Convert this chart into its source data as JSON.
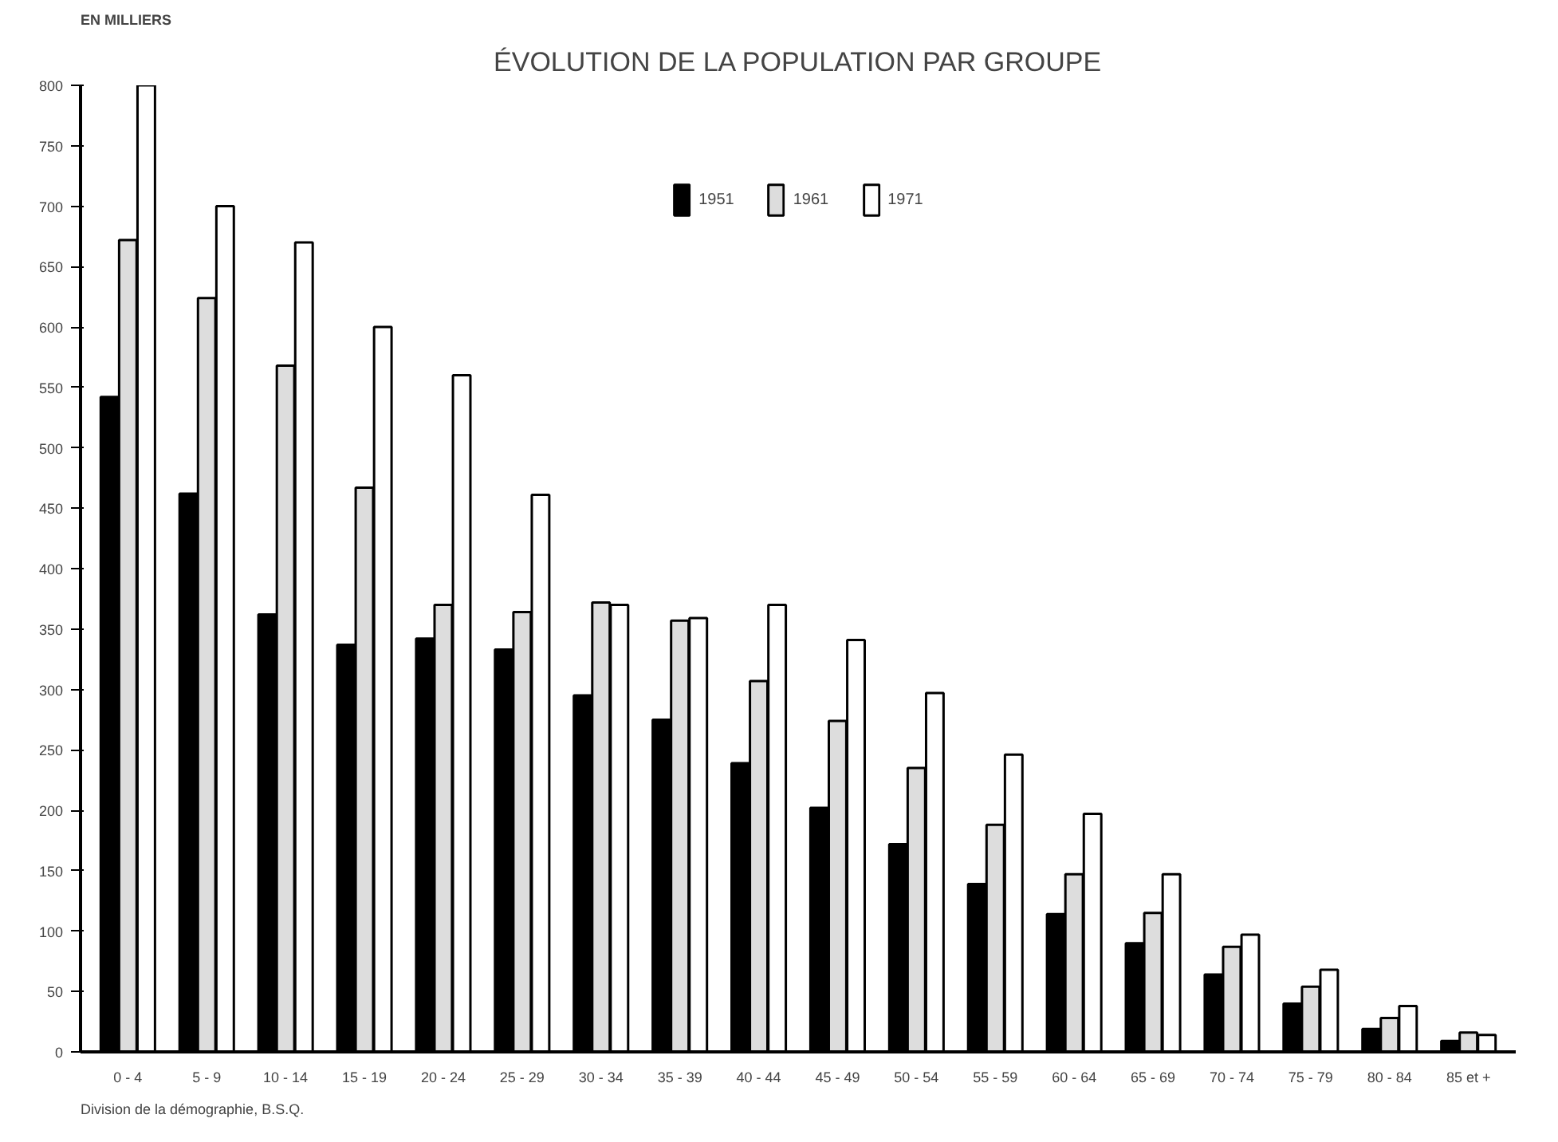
{
  "chart_data": {
    "type": "bar",
    "title": "ÉVOLUTION DE LA POPULATION PAR GROUPE",
    "ylabel": "EN MILLIERS",
    "categories": [
      "0 - 4",
      "5 - 9",
      "10 - 14",
      "15 - 19",
      "20 - 24",
      "25 - 29",
      "30 - 34",
      "35 - 39",
      "40 - 44",
      "45 - 49",
      "50 - 54",
      "55 - 59",
      "60 - 64",
      "65 - 69",
      "70 - 74",
      "75 - 79",
      "80 - 84",
      "85 et +"
    ],
    "series": [
      {
        "name": "1951",
        "color": "#000000",
        "values": [
          542,
          462,
          362,
          337,
          342,
          333,
          295,
          275,
          239,
          202,
          172,
          139,
          114,
          90,
          64,
          40,
          19,
          9
        ]
      },
      {
        "name": "1961",
        "color": "#dddddd",
        "values": [
          672,
          624,
          568,
          467,
          370,
          364,
          372,
          357,
          307,
          274,
          235,
          188,
          147,
          115,
          87,
          54,
          28,
          16
        ]
      },
      {
        "name": "1971",
        "color": "#ffffff",
        "values": [
          800,
          700,
          670,
          600,
          560,
          461,
          370,
          359,
          370,
          341,
          297,
          246,
          197,
          147,
          97,
          68,
          38,
          14
        ]
      }
    ],
    "ylim": [
      0,
      800
    ],
    "yticks": [
      0,
      50,
      100,
      150,
      200,
      250,
      300,
      350,
      400,
      450,
      500,
      550,
      600,
      650,
      700,
      750,
      800
    ],
    "grid": false,
    "legend": "top",
    "annotations": [
      "Division de la démographie, B.S.Q."
    ]
  }
}
